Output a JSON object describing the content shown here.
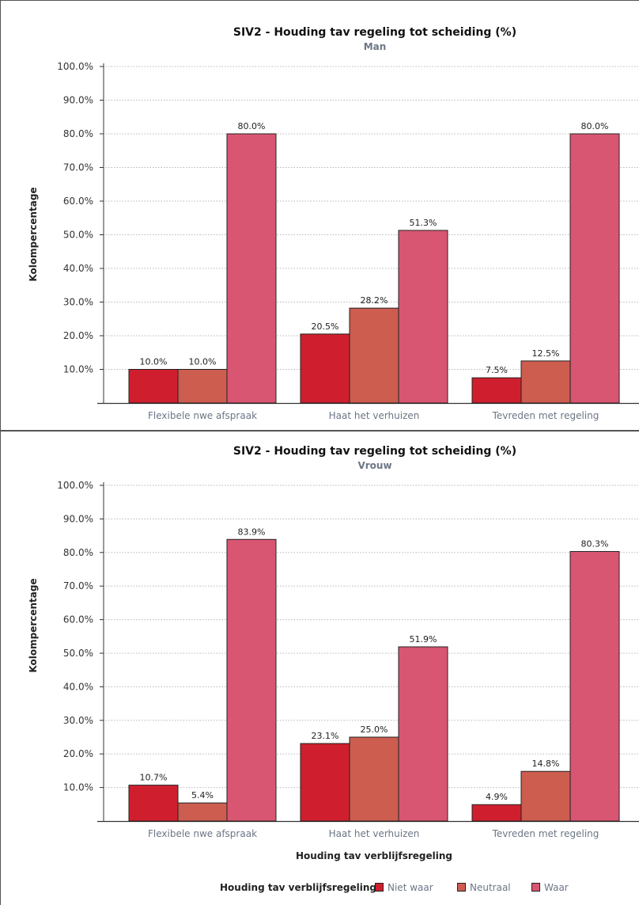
{
  "colors": {
    "niet_waar": "#cf1f2e",
    "neutraal": "#cc5d4f",
    "waar": "#d95672",
    "bar_stroke": "#222222",
    "grid": "#b8b8b8",
    "axis": "#333333"
  },
  "legend": {
    "title": "Houding tav verblijfsregeling",
    "items": [
      "Niet waar",
      "Neutraal",
      "Waar"
    ]
  },
  "chart_data": [
    {
      "type": "bar",
      "title": "SIV2 - Houding tav regeling tot scheiding (%)",
      "subtitle": "Man",
      "ylabel": "Kolompercentage",
      "xlabel": "",
      "ylim": [
        0,
        100
      ],
      "yticks": [
        "10.0%",
        "20.0%",
        "30.0%",
        "40.0%",
        "50.0%",
        "60.0%",
        "70.0%",
        "80.0%",
        "90.0%",
        "100.0%"
      ],
      "grid": true,
      "categories": [
        "Flexibele nwe afspraak",
        "Haat het verhuizen",
        "Tevreden met regeling"
      ],
      "series": [
        {
          "name": "Niet waar",
          "values": [
            10.0,
            20.5,
            7.5
          ],
          "labels": [
            "10.0%",
            "20.5%",
            "7.5%"
          ]
        },
        {
          "name": "Neutraal",
          "values": [
            10.0,
            28.2,
            12.5
          ],
          "labels": [
            "10.0%",
            "28.2%",
            "12.5%"
          ]
        },
        {
          "name": "Waar",
          "values": [
            80.0,
            51.3,
            80.0
          ],
          "labels": [
            "80.0%",
            "51.3%",
            "80.0%"
          ]
        }
      ]
    },
    {
      "type": "bar",
      "title": "SIV2 - Houding tav regeling tot scheiding (%)",
      "subtitle": "Vrouw",
      "ylabel": "Kolompercentage",
      "xlabel": "Houding tav verblijfsregeling",
      "ylim": [
        0,
        100
      ],
      "yticks": [
        "10.0%",
        "20.0%",
        "30.0%",
        "40.0%",
        "50.0%",
        "60.0%",
        "70.0%",
        "80.0%",
        "90.0%",
        "100.0%"
      ],
      "grid": true,
      "categories": [
        "Flexibele nwe afspraak",
        "Haat het verhuizen",
        "Tevreden met regeling"
      ],
      "series": [
        {
          "name": "Niet waar",
          "values": [
            10.7,
            23.1,
            4.9
          ],
          "labels": [
            "10.7%",
            "23.1%",
            "4.9%"
          ]
        },
        {
          "name": "Neutraal",
          "values": [
            5.4,
            25.0,
            14.8
          ],
          "labels": [
            "5.4%",
            "25.0%",
            "14.8%"
          ]
        },
        {
          "name": "Waar",
          "values": [
            83.9,
            51.9,
            80.3
          ],
          "labels": [
            "83.9%",
            "51.9%",
            "80.3%"
          ]
        }
      ]
    }
  ]
}
